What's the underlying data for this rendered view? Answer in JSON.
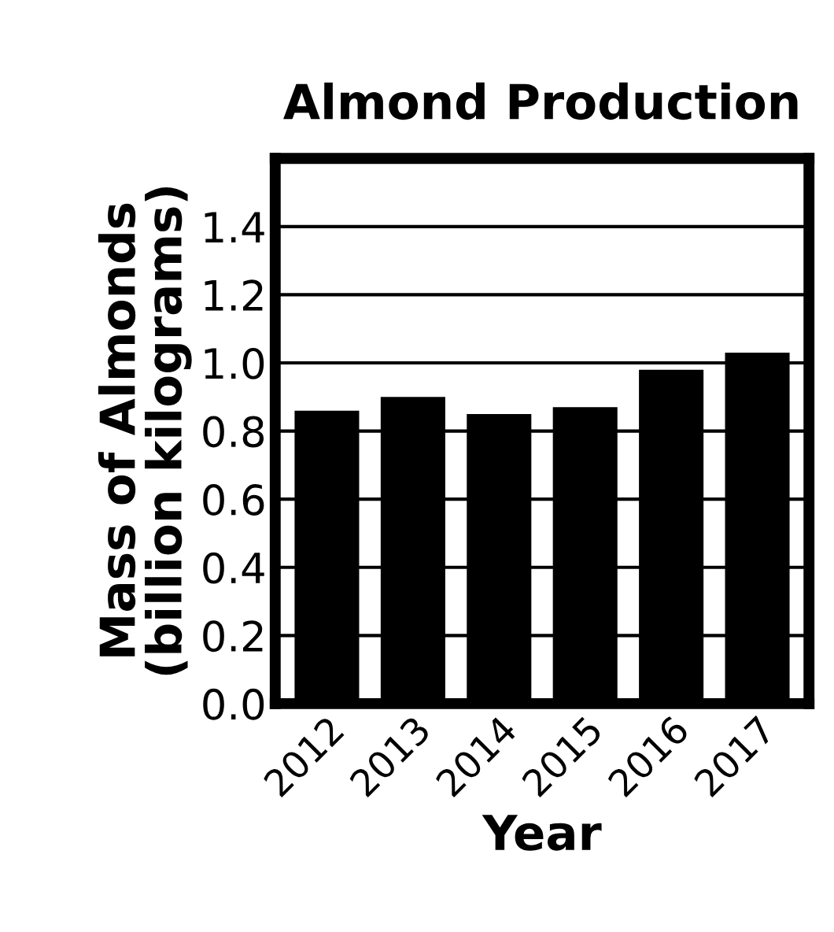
{
  "chart_data": {
    "type": "bar",
    "title": "Almond Production",
    "xlabel": "Year",
    "ylabel": "Mass of Almonds\n(billion kilograms)",
    "categories": [
      "2012",
      "2013",
      "2014",
      "2015",
      "2016",
      "2017"
    ],
    "values": [
      0.86,
      0.9,
      0.85,
      0.87,
      0.98,
      1.03
    ],
    "color": "#000000",
    "ylim": [
      0,
      1.6
    ],
    "yticks": [
      {
        "value": 0,
        "label": "0.0"
      },
      0.2,
      0.4,
      0.6,
      0.8,
      {
        "value": 1,
        "label": "1.0"
      },
      1.2,
      1.4
    ],
    "grid": "y"
  }
}
